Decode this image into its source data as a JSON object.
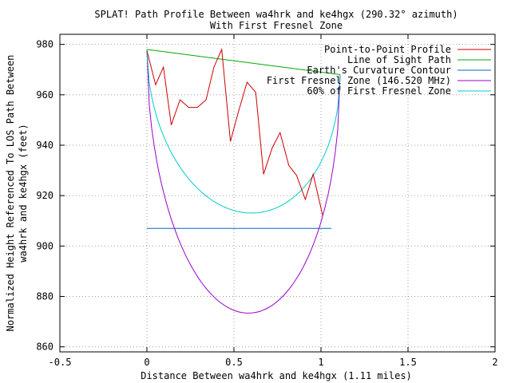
{
  "chart_data": {
    "type": "line",
    "title": "SPLAT! Path Profile Between wa4hrk and ke4hgx (290.32° azimuth)",
    "subtitle": "With First Fresnel Zone",
    "xlabel": "Distance Between wa4hrk and ke4hgx (1.11 miles)",
    "ylabel_line1": "Normalized Height Referenced To LOS Path Between",
    "ylabel_line2": "wa4hrk and ke4hgx (feet)",
    "xlim": [
      -0.5,
      2
    ],
    "ylim": [
      858,
      984
    ],
    "xticks": [
      -0.5,
      0,
      0.5,
      1,
      1.5,
      2
    ],
    "xtick_labels": [
      "-0.5",
      "0",
      "0.5",
      "1",
      "1.5",
      "2"
    ],
    "yticks": [
      860,
      880,
      900,
      920,
      940,
      960,
      980
    ],
    "ytick_labels": [
      "860",
      "880",
      "900",
      "920",
      "940",
      "960",
      "980"
    ],
    "grid": true,
    "legend_position": "top-right",
    "series": [
      {
        "name": "Point-to-Point Profile",
        "color": "#cc0000",
        "x": [
          0,
          0.05,
          0.095,
          0.14,
          0.19,
          0.24,
          0.29,
          0.34,
          0.385,
          0.43,
          0.48,
          0.525,
          0.575,
          0.625,
          0.67,
          0.72,
          0.765,
          0.815,
          0.86,
          0.91,
          0.955,
          1.01
        ],
        "y": [
          977.5,
          964,
          971,
          948,
          958,
          955,
          955,
          958,
          971,
          978,
          941.5,
          953,
          965,
          961,
          928.5,
          939,
          945,
          932,
          928,
          918.5,
          928.5,
          912
        ]
      },
      {
        "name": "Line of Sight Path",
        "color": "#00aa00",
        "x": [
          0,
          1.11
        ],
        "y": [
          978,
          968
        ]
      },
      {
        "name": "Earth's Curvature Contour",
        "color": "#0066cc",
        "x": [
          0,
          1.06
        ],
        "y": [
          907,
          907
        ]
      },
      {
        "name": "First Fresnel Zone (146.520 MHz)",
        "color": "#9900cc",
        "x": [
          0,
          1.11
        ],
        "y": [
          978,
          968
        ],
        "depth": 99.5
      },
      {
        "name": "60% of First Fresnel Zone",
        "color": "#00cccc",
        "x": [
          0,
          1.11
        ],
        "y": [
          978,
          968
        ],
        "depth": 59.7
      }
    ]
  }
}
